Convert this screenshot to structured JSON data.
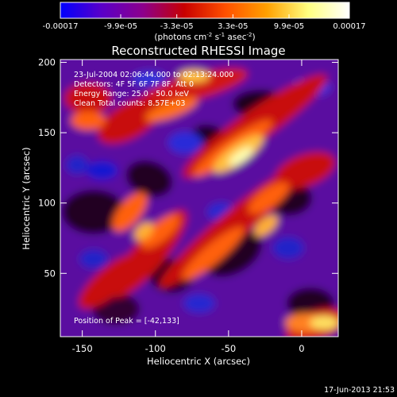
{
  "colorbar": {
    "tick_labels": [
      "-0.00017",
      "-9.9e-05",
      "-3.3e-05",
      "3.3e-05",
      "9.9e-05",
      "0.00017"
    ],
    "tick_values": [
      -0.00017,
      -9.9e-05,
      -3.3e-05,
      3.3e-05,
      9.9e-05,
      0.00017
    ],
    "range": [
      -0.00017,
      0.00017
    ],
    "unit_text": "(photons cm",
    "unit_exp1": "-2",
    "unit_s": " s",
    "unit_exp2": "-1",
    "unit_asec": " asec",
    "unit_exp3": "-2",
    "unit_close": ")",
    "colors": [
      "#0000ff",
      "#5a00c8",
      "#8c008c",
      "#c80000",
      "#ff5000",
      "#ffa000",
      "#ffff80",
      "#ffffff"
    ]
  },
  "chart_data": {
    "type": "heatmap",
    "title": "Reconstructed RHESSI Image",
    "xlabel": "Heliocentric X (arcsec)",
    "ylabel": "Heliocentric Y (arcsec)",
    "xlim": [
      -165,
      25
    ],
    "ylim": [
      5,
      202
    ],
    "x_ticks": [
      -150,
      -100,
      -50,
      0
    ],
    "x_tick_labels": [
      "-150",
      "-100",
      "-50",
      "0"
    ],
    "y_ticks": [
      50,
      100,
      150,
      200
    ],
    "y_tick_labels": [
      "50",
      "100",
      "150",
      "200"
    ],
    "peak": {
      "x": -42,
      "y": 133
    },
    "info_lines": [
      "23-Jul-2004 02:06:44.000 to 02:13:24.000",
      "Detectors: 4F 5F 6F 7F 8F, Att 0",
      "Energy Range: 25.0 - 50.0 keV",
      "Clean     Total counts: 8.57E+03"
    ],
    "peak_label": "Position of Peak = [-42,133]"
  },
  "footer": {
    "timestamp": "17-Jun-2013 21:53"
  }
}
